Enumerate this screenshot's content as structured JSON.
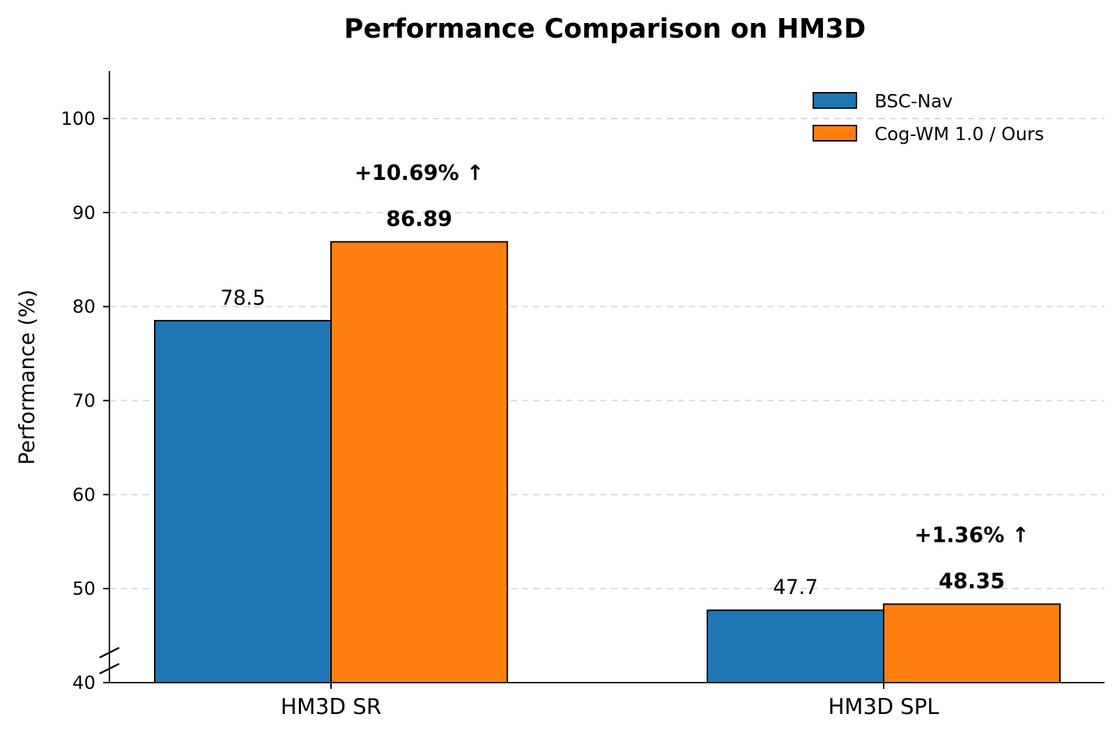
{
  "chart_data": {
    "type": "bar",
    "title": "Performance Comparison on HM3D",
    "xlabel": "",
    "ylabel": "Performance (%)",
    "categories": [
      "HM3D SR",
      "HM3D SPL"
    ],
    "series": [
      {
        "name": "BSC-Nav",
        "values": [
          78.5,
          47.7
        ],
        "labels": [
          "78.5",
          "47.7"
        ],
        "color": "#1f77b4"
      },
      {
        "name": "Cog-WM 1.0 / Ours",
        "values": [
          86.89,
          48.35
        ],
        "labels": [
          "86.89",
          "48.35"
        ],
        "color": "#ff7f0e"
      }
    ],
    "improvements": [
      "+10.69% ↑",
      "+1.36% ↑"
    ],
    "ylim": [
      40,
      105
    ],
    "yticks": [
      40,
      50,
      60,
      70,
      80,
      90,
      100
    ],
    "grid": "horizontal-dashed",
    "axis_break": true,
    "legend_position": "top-right"
  }
}
